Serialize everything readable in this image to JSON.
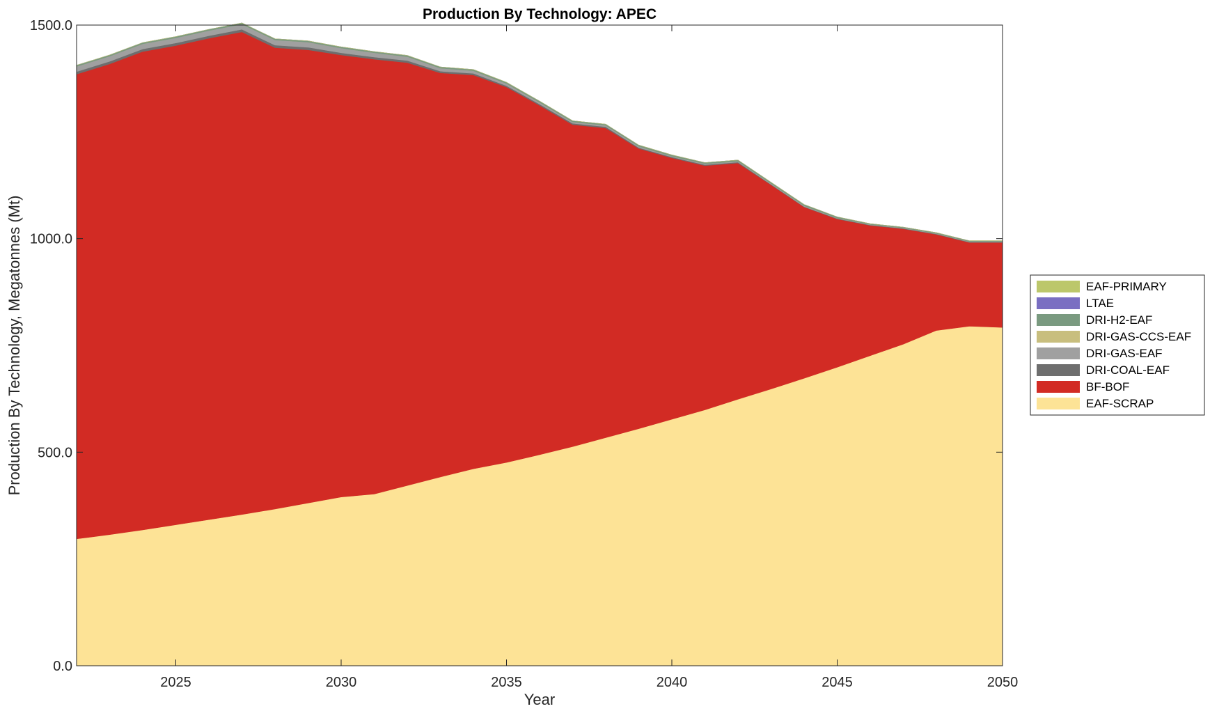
{
  "chart_data": {
    "type": "area",
    "stacked": true,
    "title": "Production By Technology: APEC",
    "xlabel": "Year",
    "ylabel": "Production By Technology, Megatonnes (Mt)",
    "xlim": [
      2022,
      2050
    ],
    "ylim": [
      0,
      1500
    ],
    "xticks": [
      2025,
      2030,
      2035,
      2040,
      2045,
      2050
    ],
    "yticks": [
      0,
      500,
      1000,
      1500
    ],
    "ytick_labels": [
      "0.0",
      "500.0",
      "1000.0",
      "1500.0"
    ],
    "grid": false,
    "legend_position": "right",
    "x": [
      2022,
      2023,
      2024,
      2025,
      2026,
      2027,
      2028,
      2029,
      2030,
      2031,
      2032,
      2033,
      2034,
      2035,
      2036,
      2037,
      2038,
      2039,
      2040,
      2041,
      2042,
      2043,
      2044,
      2045,
      2046,
      2047,
      2048,
      2049,
      2050
    ],
    "series": [
      {
        "name": "EAF-SCRAP",
        "color": "#FDE396",
        "values": [
          297,
          307,
          318,
          330,
          342,
          354,
          367,
          381,
          395,
          402,
          422,
          442,
          461,
          476,
          494,
          513,
          534,
          555,
          577,
          599,
          624,
          648,
          673,
          699,
          726,
          753,
          785,
          795,
          792
        ]
      },
      {
        "name": "BF-BOF",
        "color": "#D22B24",
        "values": [
          1088,
          1102,
          1120,
          1122,
          1127,
          1130,
          1080,
          1061,
          1035,
          1018,
          990,
          946,
          922,
          879,
          818,
          754,
          725,
          656,
          612,
          572,
          553,
          478,
          401,
          347,
          305,
          270,
          225,
          196,
          199
        ]
      },
      {
        "name": "DRI-COAL-EAF",
        "color": "#6E6E6E",
        "values": [
          6,
          6,
          6,
          6,
          6,
          6,
          6,
          6,
          5,
          5,
          5,
          4,
          4,
          3,
          3,
          3,
          3,
          2,
          2,
          2,
          2,
          1,
          1,
          1,
          1,
          1,
          1,
          1,
          1
        ]
      },
      {
        "name": "DRI-GAS-EAF",
        "color": "#A0A0A0",
        "values": [
          12,
          12,
          12,
          12,
          12,
          12,
          12,
          12,
          11,
          10,
          9,
          7,
          6,
          5,
          4,
          3,
          3,
          3,
          2,
          2,
          2,
          2,
          2,
          1,
          1,
          1,
          1,
          1,
          1
        ]
      },
      {
        "name": "DRI-GAS-CCS-EAF",
        "color": "#C8BE7E",
        "values": [
          0,
          0,
          0,
          0,
          0,
          0,
          0,
          0,
          0,
          0,
          0,
          0,
          0,
          0,
          0,
          0,
          0,
          0,
          0,
          0,
          0,
          0,
          0,
          0,
          0,
          0,
          0,
          0,
          0
        ]
      },
      {
        "name": "DRI-H2-EAF",
        "color": "#7A9A80",
        "values": [
          3,
          3,
          3,
          3,
          3,
          3,
          3,
          3,
          3,
          3,
          3,
          3,
          3,
          3,
          3,
          3,
          3,
          3,
          3,
          3,
          3,
          3,
          3,
          3,
          2,
          2,
          2,
          2,
          2
        ]
      },
      {
        "name": "LTAE",
        "color": "#7A6FC2",
        "values": [
          0,
          0,
          0,
          0,
          0,
          0,
          0,
          0,
          0,
          0,
          0,
          0,
          0,
          0,
          0,
          0,
          0,
          0,
          0,
          0,
          0,
          0,
          0,
          0,
          0,
          0,
          0,
          0,
          0
        ]
      },
      {
        "name": "EAF-PRIMARY",
        "color": "#BCC76B",
        "values": [
          0,
          0,
          0,
          0,
          0,
          0,
          0,
          0,
          0,
          0,
          0,
          0,
          0,
          0,
          0,
          0,
          0,
          0,
          0,
          0,
          0,
          0,
          0,
          0,
          0,
          0,
          0,
          0,
          0
        ]
      }
    ],
    "legend_order": [
      "EAF-PRIMARY",
      "LTAE",
      "DRI-H2-EAF",
      "DRI-GAS-CCS-EAF",
      "DRI-GAS-EAF",
      "DRI-COAL-EAF",
      "BF-BOF",
      "EAF-SCRAP"
    ]
  }
}
